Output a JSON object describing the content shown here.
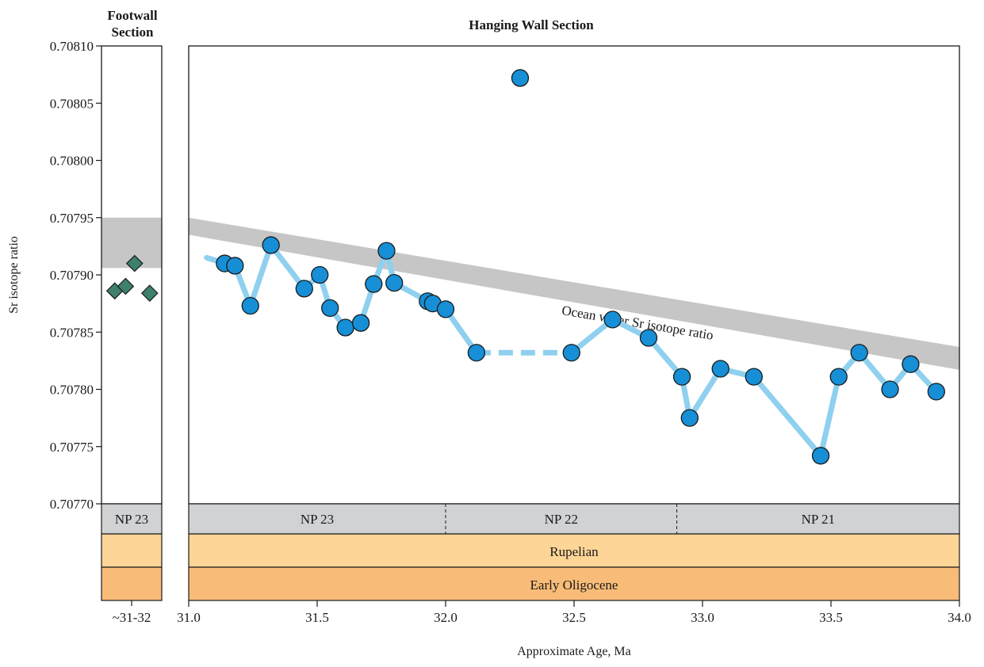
{
  "chart_data": [
    {
      "panel": "footwall",
      "type": "scatter",
      "title_lines": [
        "Footwall",
        "Section"
      ],
      "ylabel": "Sr isotope ratio",
      "ylim": [
        0.7077,
        0.7081
      ],
      "yticks": [
        "0.70810",
        "0.70805",
        "0.70800",
        "0.70795",
        "0.70790",
        "0.70785",
        "0.70780",
        "0.70775",
        "0.70770"
      ],
      "xtick_label": "~31-32",
      "marker": "diamond",
      "marker_color": "#3f7f6e",
      "points": [
        {
          "x": 0.22,
          "y": 0.707886,
          "err": 2e-06
        },
        {
          "x": 0.4,
          "y": 0.70789,
          "err": 2e-06
        },
        {
          "x": 0.55,
          "y": 0.70791,
          "err": 2e-06
        },
        {
          "x": 0.8,
          "y": 0.707884,
          "err": 2e-06
        }
      ],
      "ocean_band": {
        "y_low": 0.707906,
        "y_high": 0.70795,
        "color": "#c6c6c6"
      },
      "bands": [
        {
          "label": "NP 23",
          "color": "#d1d2d4"
        },
        {
          "label": "",
          "color": "#fdd596"
        },
        {
          "label": "",
          "color": "#f8bc78"
        }
      ]
    },
    {
      "panel": "hanging-wall",
      "type": "scatter",
      "title": "Hanging Wall Section",
      "xlabel": "Approximate Age, Ma",
      "xlim": [
        31.0,
        34.0
      ],
      "ylim": [
        0.7077,
        0.7081
      ],
      "xticks": [
        "31.0",
        "31.5",
        "32.0",
        "32.5",
        "33.0",
        "33.5",
        "34.0"
      ],
      "marker": "circle",
      "marker_color": "#168fd6",
      "line_color": "#8fd0ef",
      "points": [
        {
          "x": 31.14,
          "y": 0.70791,
          "err": 2e-06
        },
        {
          "x": 31.18,
          "y": 0.707908,
          "err": 2e-06
        },
        {
          "x": 31.24,
          "y": 0.707873,
          "err": 2e-06
        },
        {
          "x": 31.32,
          "y": 0.707926,
          "err": 2e-06
        },
        {
          "x": 31.45,
          "y": 0.707888,
          "err": 2e-06
        },
        {
          "x": 31.51,
          "y": 0.7079,
          "err": 2e-06
        },
        {
          "x": 31.55,
          "y": 0.707871,
          "err": 2e-06
        },
        {
          "x": 31.61,
          "y": 0.707854,
          "err": 2e-06
        },
        {
          "x": 31.67,
          "y": 0.707858,
          "err": 2e-06
        },
        {
          "x": 31.72,
          "y": 0.707892,
          "err": 2e-06
        },
        {
          "x": 31.77,
          "y": 0.707921,
          "err": 2e-06
        },
        {
          "x": 31.8,
          "y": 0.707893,
          "err": 2e-06
        },
        {
          "x": 31.93,
          "y": 0.707877,
          "err": 2e-06
        },
        {
          "x": 31.95,
          "y": 0.707875,
          "err": 2e-06
        },
        {
          "x": 32.0,
          "y": 0.70787,
          "err": 2e-06
        },
        {
          "x": 32.12,
          "y": 0.707832,
          "err": 2e-06
        },
        {
          "x": 32.29,
          "y": 0.708072,
          "err": 2e-06
        },
        {
          "x": 32.49,
          "y": 0.707832,
          "err": 2e-06
        },
        {
          "x": 32.65,
          "y": 0.707861,
          "err": 2e-06
        },
        {
          "x": 32.79,
          "y": 0.707845,
          "err": 2e-06
        },
        {
          "x": 32.92,
          "y": 0.707811,
          "err": 2e-06
        },
        {
          "x": 32.95,
          "y": 0.707775,
          "err": 2e-06
        },
        {
          "x": 33.07,
          "y": 0.707818,
          "err": 2e-06
        },
        {
          "x": 33.2,
          "y": 0.707811,
          "err": 2e-06
        },
        {
          "x": 33.46,
          "y": 0.707742,
          "err": 2e-06
        },
        {
          "x": 33.53,
          "y": 0.707811,
          "err": 2e-06
        },
        {
          "x": 33.61,
          "y": 0.707832,
          "err": 2e-06
        },
        {
          "x": 33.73,
          "y": 0.7078,
          "err": 2e-06
        },
        {
          "x": 33.81,
          "y": 0.707822,
          "err": 2e-06
        },
        {
          "x": 33.91,
          "y": 0.707798,
          "err": 2e-06
        }
      ],
      "trend_solid_1": [
        [
          31.07,
          0.707915
        ],
        [
          31.14,
          0.70791
        ],
        [
          31.18,
          0.707908
        ],
        [
          31.24,
          0.707873
        ],
        [
          31.32,
          0.707926
        ],
        [
          31.45,
          0.707888
        ],
        [
          31.51,
          0.7079
        ],
        [
          31.55,
          0.707871
        ],
        [
          31.61,
          0.707854
        ],
        [
          31.67,
          0.707858
        ],
        [
          31.72,
          0.707892
        ],
        [
          31.77,
          0.707921
        ],
        [
          31.8,
          0.707893
        ],
        [
          31.93,
          0.707877
        ],
        [
          31.95,
          0.707875
        ],
        [
          32.0,
          0.70787
        ],
        [
          32.12,
          0.707832
        ]
      ],
      "trend_dashed": [
        [
          32.12,
          0.707832
        ],
        [
          32.49,
          0.707832
        ]
      ],
      "trend_solid_2": [
        [
          32.49,
          0.707832
        ],
        [
          32.65,
          0.707861
        ],
        [
          32.79,
          0.707845
        ],
        [
          32.92,
          0.707811
        ],
        [
          32.95,
          0.707775
        ],
        [
          33.07,
          0.707818
        ],
        [
          33.2,
          0.707811
        ],
        [
          33.46,
          0.707742
        ],
        [
          33.53,
          0.707811
        ],
        [
          33.61,
          0.707832
        ],
        [
          33.73,
          0.7078
        ],
        [
          33.81,
          0.707822
        ],
        [
          33.91,
          0.707798
        ]
      ],
      "ocean_band": {
        "label": "Ocean water Sr isotope ratio",
        "color": "#c6c6c6",
        "upper": [
          [
            31.0,
            0.70795
          ],
          [
            34.0,
            0.707837
          ]
        ],
        "lower": [
          [
            31.0,
            0.707935
          ],
          [
            34.0,
            0.707817
          ]
        ]
      },
      "nannofossil_zones": [
        {
          "label": "NP 23",
          "x0": 31.0,
          "x1": 32.0
        },
        {
          "label": "NP 22",
          "x0": 32.0,
          "x1": 32.9
        },
        {
          "label": "NP 21",
          "x0": 32.9,
          "x1": 34.0
        }
      ],
      "bands": [
        {
          "label": "Rupelian",
          "color": "#fdd596"
        },
        {
          "label": "Early Oligocene",
          "color": "#f8bc78"
        }
      ],
      "zone_color": "#d1d2d4"
    }
  ]
}
